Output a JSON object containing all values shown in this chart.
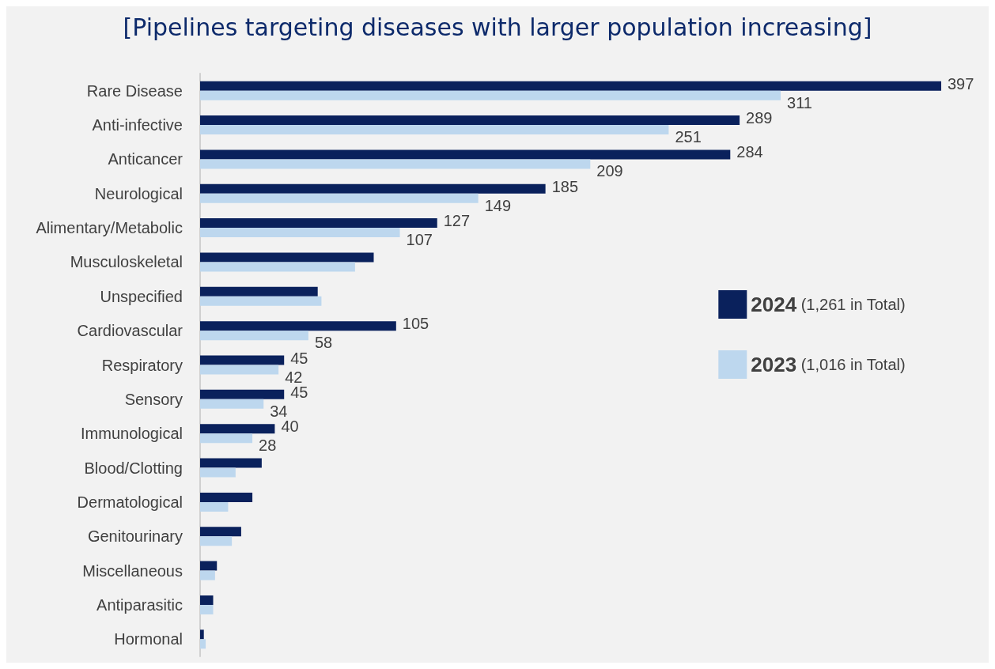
{
  "chart_data": {
    "type": "bar",
    "orientation": "horizontal",
    "title": "[Pipelines targeting diseases with larger population increasing]",
    "categories": [
      "Rare Disease",
      "Anti-infective",
      "Anticancer",
      "Neurological",
      "Alimentary/Metabolic",
      "Musculoskeletal",
      "Unspecified",
      "Cardiovascular",
      "Respiratory",
      "Sensory",
      "Immunological",
      "Blood/Clotting",
      "Dermatological",
      "Genitourinary",
      "Miscellaneous",
      "Antiparasitic",
      "Hormonal"
    ],
    "series": [
      {
        "name": "2024 (1,261 in Total)",
        "color": "#0a215c",
        "values": [
          397,
          289,
          284,
          185,
          127,
          93,
          63,
          105,
          45,
          45,
          40,
          33,
          28,
          22,
          9,
          7,
          2
        ],
        "value_labels": [
          "397",
          "289",
          "284",
          "185",
          "127",
          null,
          null,
          "105",
          "45",
          "45",
          "40",
          null,
          null,
          null,
          null,
          null,
          null
        ]
      },
      {
        "name": "2023 (1,016 in Total)",
        "color": "#bdd7ee",
        "values": [
          311,
          251,
          209,
          149,
          107,
          83,
          65,
          58,
          42,
          34,
          28,
          19,
          15,
          17,
          8,
          7,
          3
        ],
        "value_labels": [
          "311",
          "251",
          "209",
          "149",
          "107",
          null,
          null,
          "58",
          "42",
          "34",
          "28",
          null,
          null,
          null,
          null,
          null,
          null
        ]
      }
    ],
    "legend": "right"
  }
}
